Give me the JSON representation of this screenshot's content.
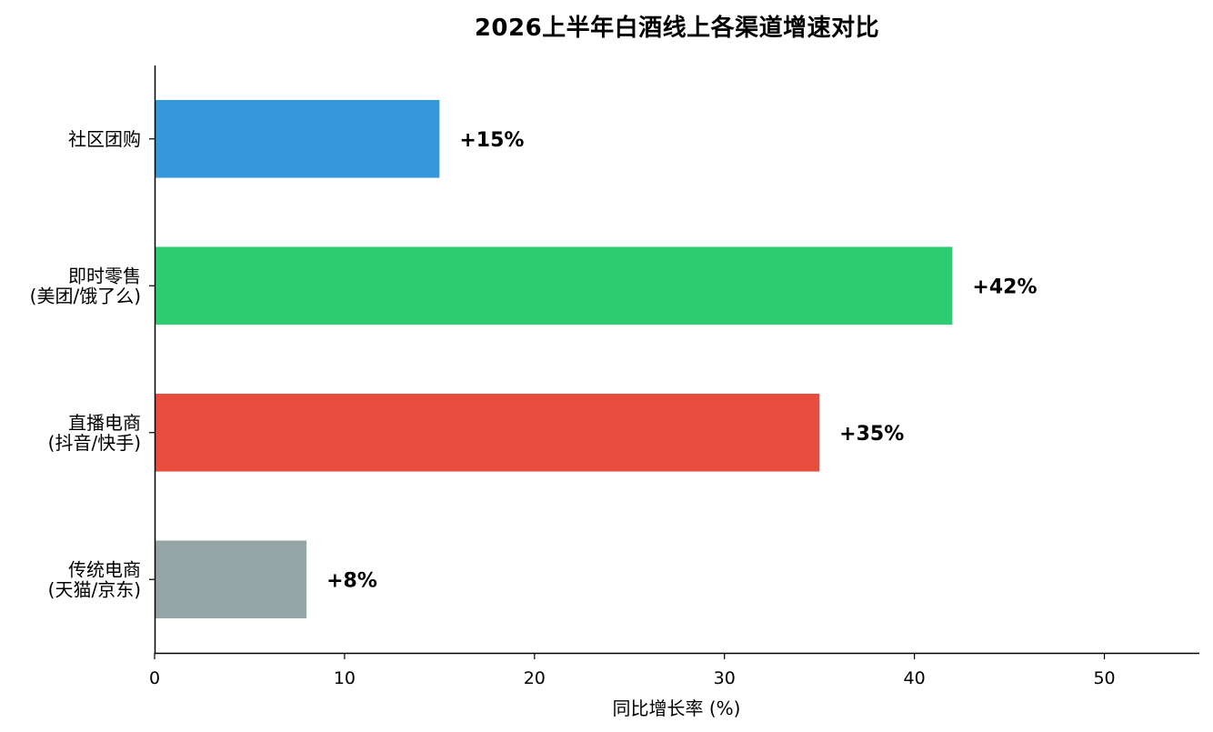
{
  "chart_data": {
    "type": "bar",
    "orientation": "horizontal",
    "title": "2026上半年白酒线上各渠道增速对比",
    "xlabel": "同比增长率 (%)",
    "ylabel": "",
    "xlim": [
      0,
      55
    ],
    "xticks": [
      0,
      10,
      20,
      30,
      40,
      50
    ],
    "grid": false,
    "categories": [
      [
        "社区团购"
      ],
      [
        "即时零售",
        "(美团/饿了么)"
      ],
      [
        "直播电商",
        "(抖音/快手)"
      ],
      [
        "传统电商",
        "(天猫/京东)"
      ]
    ],
    "values": [
      15,
      42,
      35,
      8
    ],
    "value_labels": [
      "+15%",
      "+42%",
      "+35%",
      "+8%"
    ],
    "colors": [
      "#3498db",
      "#2ecc71",
      "#e74c3c",
      "#95a5a6"
    ]
  }
}
